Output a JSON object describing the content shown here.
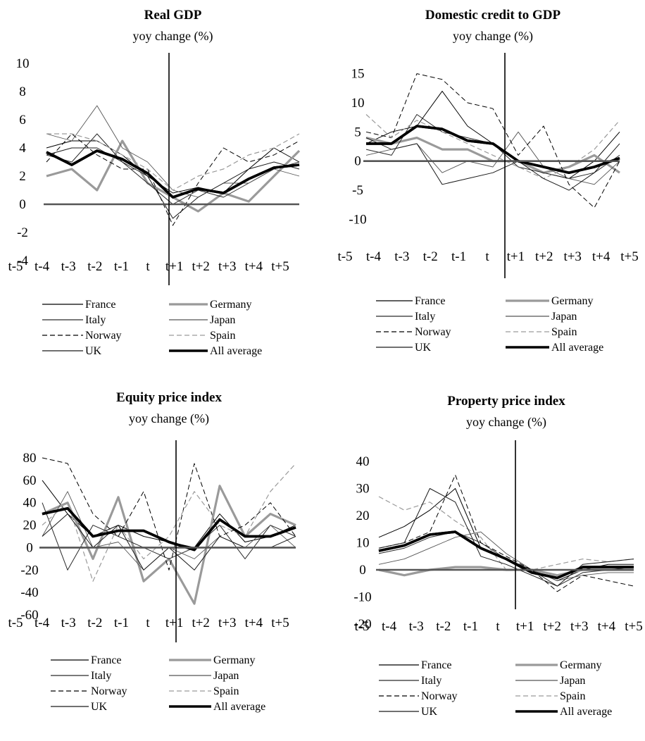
{
  "styles": {
    "France": {
      "color": "#000000",
      "width": 1.0,
      "dash": ""
    },
    "Germany": {
      "color": "#9a9a9a",
      "width": 3.2,
      "dash": ""
    },
    "Italy": {
      "color": "#2a2a2a",
      "width": 1.0,
      "dash": ""
    },
    "Japan": {
      "color": "#555555",
      "width": 0.9,
      "dash": ""
    },
    "Norway": {
      "color": "#000000",
      "width": 1.0,
      "dash": "7,4"
    },
    "Spain": {
      "color": "#9a9a9a",
      "width": 1.2,
      "dash": "7,4"
    },
    "UK": {
      "color": "#1a1a1a",
      "width": 1.0,
      "dash": ""
    },
    "All average": {
      "color": "#000000",
      "width": 3.6,
      "dash": ""
    }
  },
  "chart_data": [
    {
      "type": "line",
      "title": "Real GDP",
      "subtitle": "yoy change (%)",
      "x": [
        "t-5",
        "t-4",
        "t-3",
        "t-2",
        "t-1",
        "t",
        "t+1",
        "t+2",
        "t+3",
        "t+4",
        "t+5"
      ],
      "xlabels": [
        "t-5",
        "t-4",
        "t-3",
        "t-2",
        "t-1",
        "t",
        "t+1",
        "t+2",
        "t+3",
        "t+4",
        "t+5"
      ],
      "yticks": [
        -4,
        -2,
        0,
        2,
        4,
        6,
        8,
        10
      ],
      "ylim": [
        -4,
        10
      ],
      "legend": [
        "France",
        "Germany",
        "Italy",
        "Japan",
        "Norway",
        "Spain",
        "UK",
        "All average"
      ],
      "series": [
        {
          "name": "France",
          "values": [
            4.0,
            4.5,
            4.5,
            3.5,
            2.0,
            0.8,
            1.2,
            0.8,
            2.5,
            4.0,
            3.0
          ]
        },
        {
          "name": "Germany",
          "values": [
            2.0,
            2.5,
            1.0,
            4.5,
            1.5,
            0.5,
            -0.5,
            0.8,
            0.2,
            2.0,
            3.8
          ]
        },
        {
          "name": "Italy",
          "values": [
            3.5,
            3.0,
            5.0,
            3.0,
            1.5,
            0.0,
            1.0,
            0.5,
            1.5,
            2.5,
            3.0
          ]
        },
        {
          "name": "Japan",
          "values": [
            5.0,
            4.5,
            7.0,
            4.0,
            3.0,
            1.0,
            0.5,
            1.5,
            1.5,
            2.5,
            2.0
          ]
        },
        {
          "name": "Norway",
          "values": [
            3.0,
            5.0,
            3.5,
            2.5,
            2.5,
            -1.5,
            1.5,
            4.0,
            3.0,
            3.5,
            4.5
          ]
        },
        {
          "name": "Spain",
          "values": [
            5.0,
            5.0,
            4.5,
            3.5,
            2.5,
            1.0,
            2.0,
            2.5,
            3.5,
            4.0,
            5.0
          ]
        },
        {
          "name": "UK",
          "values": [
            3.5,
            4.0,
            4.0,
            3.0,
            2.0,
            -1.0,
            0.5,
            1.5,
            2.5,
            3.0,
            2.5
          ]
        },
        {
          "name": "All average",
          "values": [
            3.7,
            2.8,
            3.8,
            3.2,
            2.2,
            0.5,
            1.1,
            0.8,
            1.8,
            2.6,
            2.8
          ]
        }
      ]
    },
    {
      "type": "line",
      "title": "Domestic credit to GDP",
      "subtitle": "yoy change (%)",
      "x": [
        "t-5",
        "t-4",
        "t-3",
        "t-2",
        "t-1",
        "t",
        "t+1",
        "t+2",
        "t+3",
        "t+4",
        "t+5"
      ],
      "xlabels": [
        "t-5",
        "t-4",
        "t-3",
        "t-2",
        "t-1",
        "t",
        "t+1",
        "t+2",
        "t+3",
        "t+4",
        "t+5"
      ],
      "yticks": [
        -10,
        -5,
        0,
        5,
        10,
        15
      ],
      "ylim": [
        -12,
        17
      ],
      "legend": [
        "France",
        "Germany",
        "Italy",
        "Japan",
        "Norway",
        "Spain",
        "UK",
        "All average"
      ],
      "series": [
        {
          "name": "France",
          "values": [
            3.0,
            5.0,
            6.0,
            12.0,
            6.0,
            3.0,
            0.0,
            -2.0,
            -3.0,
            0.0,
            5.0
          ]
        },
        {
          "name": "Germany",
          "values": [
            4.0,
            3.0,
            4.0,
            2.0,
            2.0,
            0.0,
            0.0,
            -2.0,
            -1.0,
            1.0,
            -2.0
          ]
        },
        {
          "name": "Italy",
          "values": [
            2.0,
            1.0,
            8.0,
            5.0,
            4.0,
            3.0,
            -1.0,
            -2.0,
            -3.0,
            -2.0,
            1.0
          ]
        },
        {
          "name": "Japan",
          "values": [
            1.0,
            2.0,
            3.0,
            -2.0,
            0.0,
            -1.0,
            5.0,
            -1.0,
            -3.0,
            -4.0,
            0.0
          ]
        },
        {
          "name": "Norway",
          "values": [
            5.0,
            4.0,
            15.0,
            14.0,
            10.0,
            9.0,
            1.0,
            6.0,
            -4.0,
            -8.0,
            0.0
          ]
        },
        {
          "name": "Spain",
          "values": [
            8.0,
            4.0,
            7.0,
            5.0,
            3.0,
            1.0,
            -1.0,
            -3.0,
            -1.0,
            2.0,
            7.0
          ]
        },
        {
          "name": "UK",
          "values": [
            4.0,
            2.0,
            3.0,
            -4.0,
            -3.0,
            -2.0,
            0.0,
            -3.0,
            -5.0,
            -2.0,
            3.0
          ]
        },
        {
          "name": "All average",
          "values": [
            3.0,
            3.0,
            6.0,
            5.5,
            3.5,
            3.0,
            0.0,
            -1.0,
            -2.0,
            -1.0,
            0.5
          ]
        }
      ]
    },
    {
      "type": "line",
      "title": "Equity price index",
      "subtitle": "yoy change (%)",
      "x": [
        "t-5",
        "t-4",
        "t-3",
        "t-2",
        "t-1",
        "t",
        "t+1",
        "t+2",
        "t+3",
        "t+4",
        "t+5"
      ],
      "xlabels": [
        "t-5",
        "t-4",
        "t-3",
        "t-2",
        "t-1",
        "t",
        "t+1",
        "t+2",
        "t+3",
        "t+4",
        "t+5"
      ],
      "yticks": [
        -60,
        -40,
        -20,
        0,
        20,
        40,
        60,
        80
      ],
      "ylim": [
        -60,
        80
      ],
      "legend": [
        "France",
        "Germany",
        "Italy",
        "Japan",
        "Norway",
        "Spain",
        "UK",
        "All average"
      ],
      "series": [
        {
          "name": "France",
          "values": [
            60,
            30,
            10,
            20,
            10,
            5,
            0,
            30,
            5,
            10,
            20
          ]
        },
        {
          "name": "Germany",
          "values": [
            30,
            40,
            -10,
            45,
            -30,
            -10,
            -50,
            55,
            10,
            30,
            20
          ]
        },
        {
          "name": "Italy",
          "values": [
            40,
            -20,
            20,
            10,
            0,
            -10,
            0,
            20,
            -10,
            20,
            10
          ]
        },
        {
          "name": "Japan",
          "values": [
            10,
            50,
            0,
            5,
            -20,
            0,
            -10,
            10,
            0,
            20,
            0
          ]
        },
        {
          "name": "Norway",
          "values": [
            80,
            75,
            30,
            10,
            50,
            -20,
            75,
            10,
            20,
            40,
            10
          ]
        },
        {
          "name": "Spain",
          "values": [
            20,
            40,
            -30,
            20,
            -10,
            10,
            50,
            20,
            10,
            50,
            75
          ]
        },
        {
          "name": "UK",
          "values": [
            10,
            30,
            0,
            20,
            -20,
            0,
            -20,
            10,
            0,
            0,
            10
          ]
        },
        {
          "name": "All average",
          "values": [
            30,
            35,
            10,
            15,
            15,
            5,
            -2,
            25,
            10,
            10,
            18
          ]
        }
      ]
    },
    {
      "type": "line",
      "title": "Property price index",
      "subtitle": "yoy change (%)",
      "x": [
        "t-5",
        "t-4",
        "t-3",
        "t-2",
        "t-1",
        "t",
        "t+1",
        "t+2",
        "t+3",
        "t+4",
        "t+5"
      ],
      "xlabels": [
        "t-5",
        "t-4",
        "t-3",
        "t-2",
        "t-1",
        "t",
        "t+1",
        "t+2",
        "t+3",
        "t+4",
        "t+5"
      ],
      "yticks": [
        -20,
        -10,
        0,
        10,
        20,
        30,
        40
      ],
      "ylim": [
        -20,
        40
      ],
      "legend": [
        "France",
        "Germany",
        "Italy",
        "Japan",
        "Norway",
        "Spain",
        "UK",
        "All average"
      ],
      "series": [
        {
          "name": "France",
          "values": [
            12,
            16,
            22,
            30,
            8,
            4,
            0,
            -4,
            0,
            2,
            2
          ]
        },
        {
          "name": "Germany",
          "values": [
            0,
            -2,
            0,
            1,
            1,
            0,
            0,
            -2,
            0,
            0,
            0
          ]
        },
        {
          "name": "Italy",
          "values": [
            6,
            8,
            12,
            14,
            10,
            4,
            0,
            -6,
            -1,
            0,
            1
          ]
        },
        {
          "name": "Japan",
          "values": [
            2,
            4,
            8,
            12,
            14,
            6,
            0,
            -4,
            -2,
            -1,
            -1
          ]
        },
        {
          "name": "Norway",
          "values": [
            8,
            10,
            14,
            35,
            10,
            5,
            0,
            -8,
            -2,
            -4,
            -6
          ]
        },
        {
          "name": "Spain",
          "values": [
            27,
            22,
            25,
            18,
            12,
            0,
            0,
            2,
            4,
            3,
            4
          ]
        },
        {
          "name": "UK",
          "values": [
            8,
            10,
            30,
            25,
            5,
            2,
            -2,
            -6,
            2,
            3,
            4
          ]
        },
        {
          "name": "All average",
          "values": [
            7,
            9,
            13,
            14,
            8,
            4,
            -1,
            -3,
            1,
            1,
            1
          ]
        }
      ]
    }
  ]
}
